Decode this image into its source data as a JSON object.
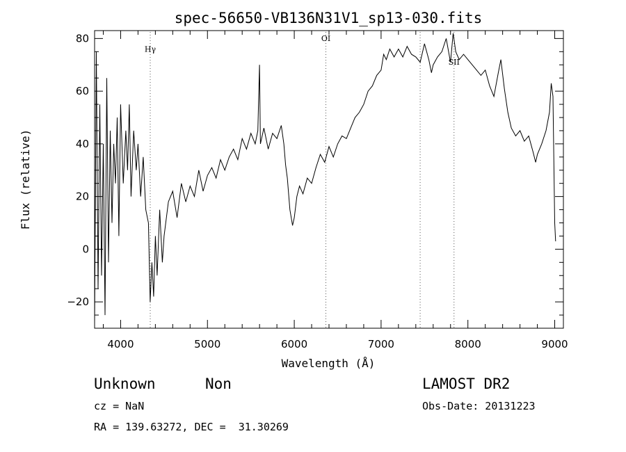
{
  "chart_data": {
    "type": "line",
    "title": "spec-56650-VB136N31V1_sp13-030.fits",
    "xlabel": "Wavelength (Å)",
    "ylabel": "Flux (relative)",
    "xlim": [
      3700,
      9100
    ],
    "ylim": [
      -30,
      83
    ],
    "xticks": [
      4000,
      5000,
      6000,
      7000,
      8000,
      9000
    ],
    "yticks": [
      -20,
      0,
      20,
      40,
      60,
      80
    ],
    "x_minor_step": 200,
    "y_minor_step": 5,
    "grid": false,
    "line_color": "#000000",
    "series": [
      {
        "name": "",
        "points": [
          [
            3700,
            -28
          ],
          [
            3720,
            75
          ],
          [
            3740,
            -15
          ],
          [
            3760,
            55
          ],
          [
            3780,
            -10
          ],
          [
            3800,
            40
          ],
          [
            3820,
            -25
          ],
          [
            3840,
            65
          ],
          [
            3860,
            -5
          ],
          [
            3880,
            45
          ],
          [
            3900,
            10
          ],
          [
            3920,
            40
          ],
          [
            3940,
            25
          ],
          [
            3960,
            50
          ],
          [
            3980,
            5
          ],
          [
            4000,
            55
          ],
          [
            4030,
            25
          ],
          [
            4060,
            45
          ],
          [
            4080,
            30
          ],
          [
            4100,
            55
          ],
          [
            4120,
            20
          ],
          [
            4150,
            45
          ],
          [
            4180,
            30
          ],
          [
            4200,
            40
          ],
          [
            4230,
            20
          ],
          [
            4260,
            35
          ],
          [
            4290,
            15
          ],
          [
            4320,
            10
          ],
          [
            4340,
            -20
          ],
          [
            4360,
            -5
          ],
          [
            4380,
            -18
          ],
          [
            4400,
            5
          ],
          [
            4420,
            -10
          ],
          [
            4450,
            15
          ],
          [
            4480,
            -5
          ],
          [
            4500,
            5
          ],
          [
            4550,
            18
          ],
          [
            4600,
            22
          ],
          [
            4650,
            12
          ],
          [
            4700,
            25
          ],
          [
            4750,
            18
          ],
          [
            4800,
            24
          ],
          [
            4850,
            20
          ],
          [
            4900,
            30
          ],
          [
            4950,
            22
          ],
          [
            5000,
            28
          ],
          [
            5050,
            31
          ],
          [
            5100,
            27
          ],
          [
            5150,
            34
          ],
          [
            5200,
            30
          ],
          [
            5250,
            35
          ],
          [
            5300,
            38
          ],
          [
            5350,
            34
          ],
          [
            5400,
            42
          ],
          [
            5450,
            38
          ],
          [
            5500,
            44
          ],
          [
            5550,
            40
          ],
          [
            5580,
            45
          ],
          [
            5600,
            70
          ],
          [
            5610,
            40
          ],
          [
            5650,
            46
          ],
          [
            5700,
            38
          ],
          [
            5750,
            44
          ],
          [
            5800,
            42
          ],
          [
            5850,
            47
          ],
          [
            5880,
            40
          ],
          [
            5900,
            32
          ],
          [
            5920,
            27
          ],
          [
            5950,
            15
          ],
          [
            5980,
            9
          ],
          [
            6000,
            12
          ],
          [
            6030,
            20
          ],
          [
            6060,
            24
          ],
          [
            6100,
            21
          ],
          [
            6150,
            27
          ],
          [
            6200,
            25
          ],
          [
            6250,
            31
          ],
          [
            6300,
            36
          ],
          [
            6350,
            33
          ],
          [
            6400,
            39
          ],
          [
            6450,
            35
          ],
          [
            6500,
            40
          ],
          [
            6550,
            43
          ],
          [
            6600,
            42
          ],
          [
            6650,
            46
          ],
          [
            6700,
            50
          ],
          [
            6750,
            52
          ],
          [
            6800,
            55
          ],
          [
            6850,
            60
          ],
          [
            6900,
            62
          ],
          [
            6950,
            66
          ],
          [
            7000,
            68
          ],
          [
            7030,
            74
          ],
          [
            7060,
            72
          ],
          [
            7100,
            76
          ],
          [
            7150,
            73
          ],
          [
            7200,
            76
          ],
          [
            7250,
            73
          ],
          [
            7300,
            77
          ],
          [
            7350,
            74
          ],
          [
            7400,
            73
          ],
          [
            7450,
            71
          ],
          [
            7500,
            78
          ],
          [
            7550,
            72
          ],
          [
            7580,
            67
          ],
          [
            7600,
            70
          ],
          [
            7650,
            73
          ],
          [
            7700,
            75
          ],
          [
            7750,
            80
          ],
          [
            7800,
            71
          ],
          [
            7830,
            82
          ],
          [
            7860,
            75
          ],
          [
            7900,
            72
          ],
          [
            7950,
            74
          ],
          [
            8000,
            72
          ],
          [
            8050,
            70
          ],
          [
            8100,
            68
          ],
          [
            8150,
            66
          ],
          [
            8200,
            68
          ],
          [
            8250,
            62
          ],
          [
            8300,
            58
          ],
          [
            8350,
            67
          ],
          [
            8380,
            72
          ],
          [
            8420,
            61
          ],
          [
            8460,
            52
          ],
          [
            8500,
            46
          ],
          [
            8550,
            43
          ],
          [
            8600,
            45
          ],
          [
            8650,
            41
          ],
          [
            8700,
            43
          ],
          [
            8750,
            37
          ],
          [
            8780,
            33
          ],
          [
            8800,
            36
          ],
          [
            8850,
            40
          ],
          [
            8900,
            45
          ],
          [
            8940,
            52
          ],
          [
            8960,
            63
          ],
          [
            8980,
            58
          ],
          [
            9000,
            10
          ],
          [
            9010,
            3
          ]
        ]
      }
    ],
    "line_markers": [
      {
        "label": "Hγ",
        "x": 4341,
        "label_y": 75
      },
      {
        "label": "OI",
        "x": 6364,
        "label_y": 79
      },
      {
        "label": "",
        "x": 7450,
        "label_y": 70
      },
      {
        "label": "SII",
        "x": 7840,
        "label_y": 70
      }
    ]
  },
  "info": {
    "object_class": "Unknown",
    "subclass": "Non",
    "survey": "LAMOST DR2",
    "cz": "cz = NaN",
    "obs_date": "Obs-Date: 20131223",
    "coords": "RA = 139.63272, DEC =  31.30269"
  }
}
